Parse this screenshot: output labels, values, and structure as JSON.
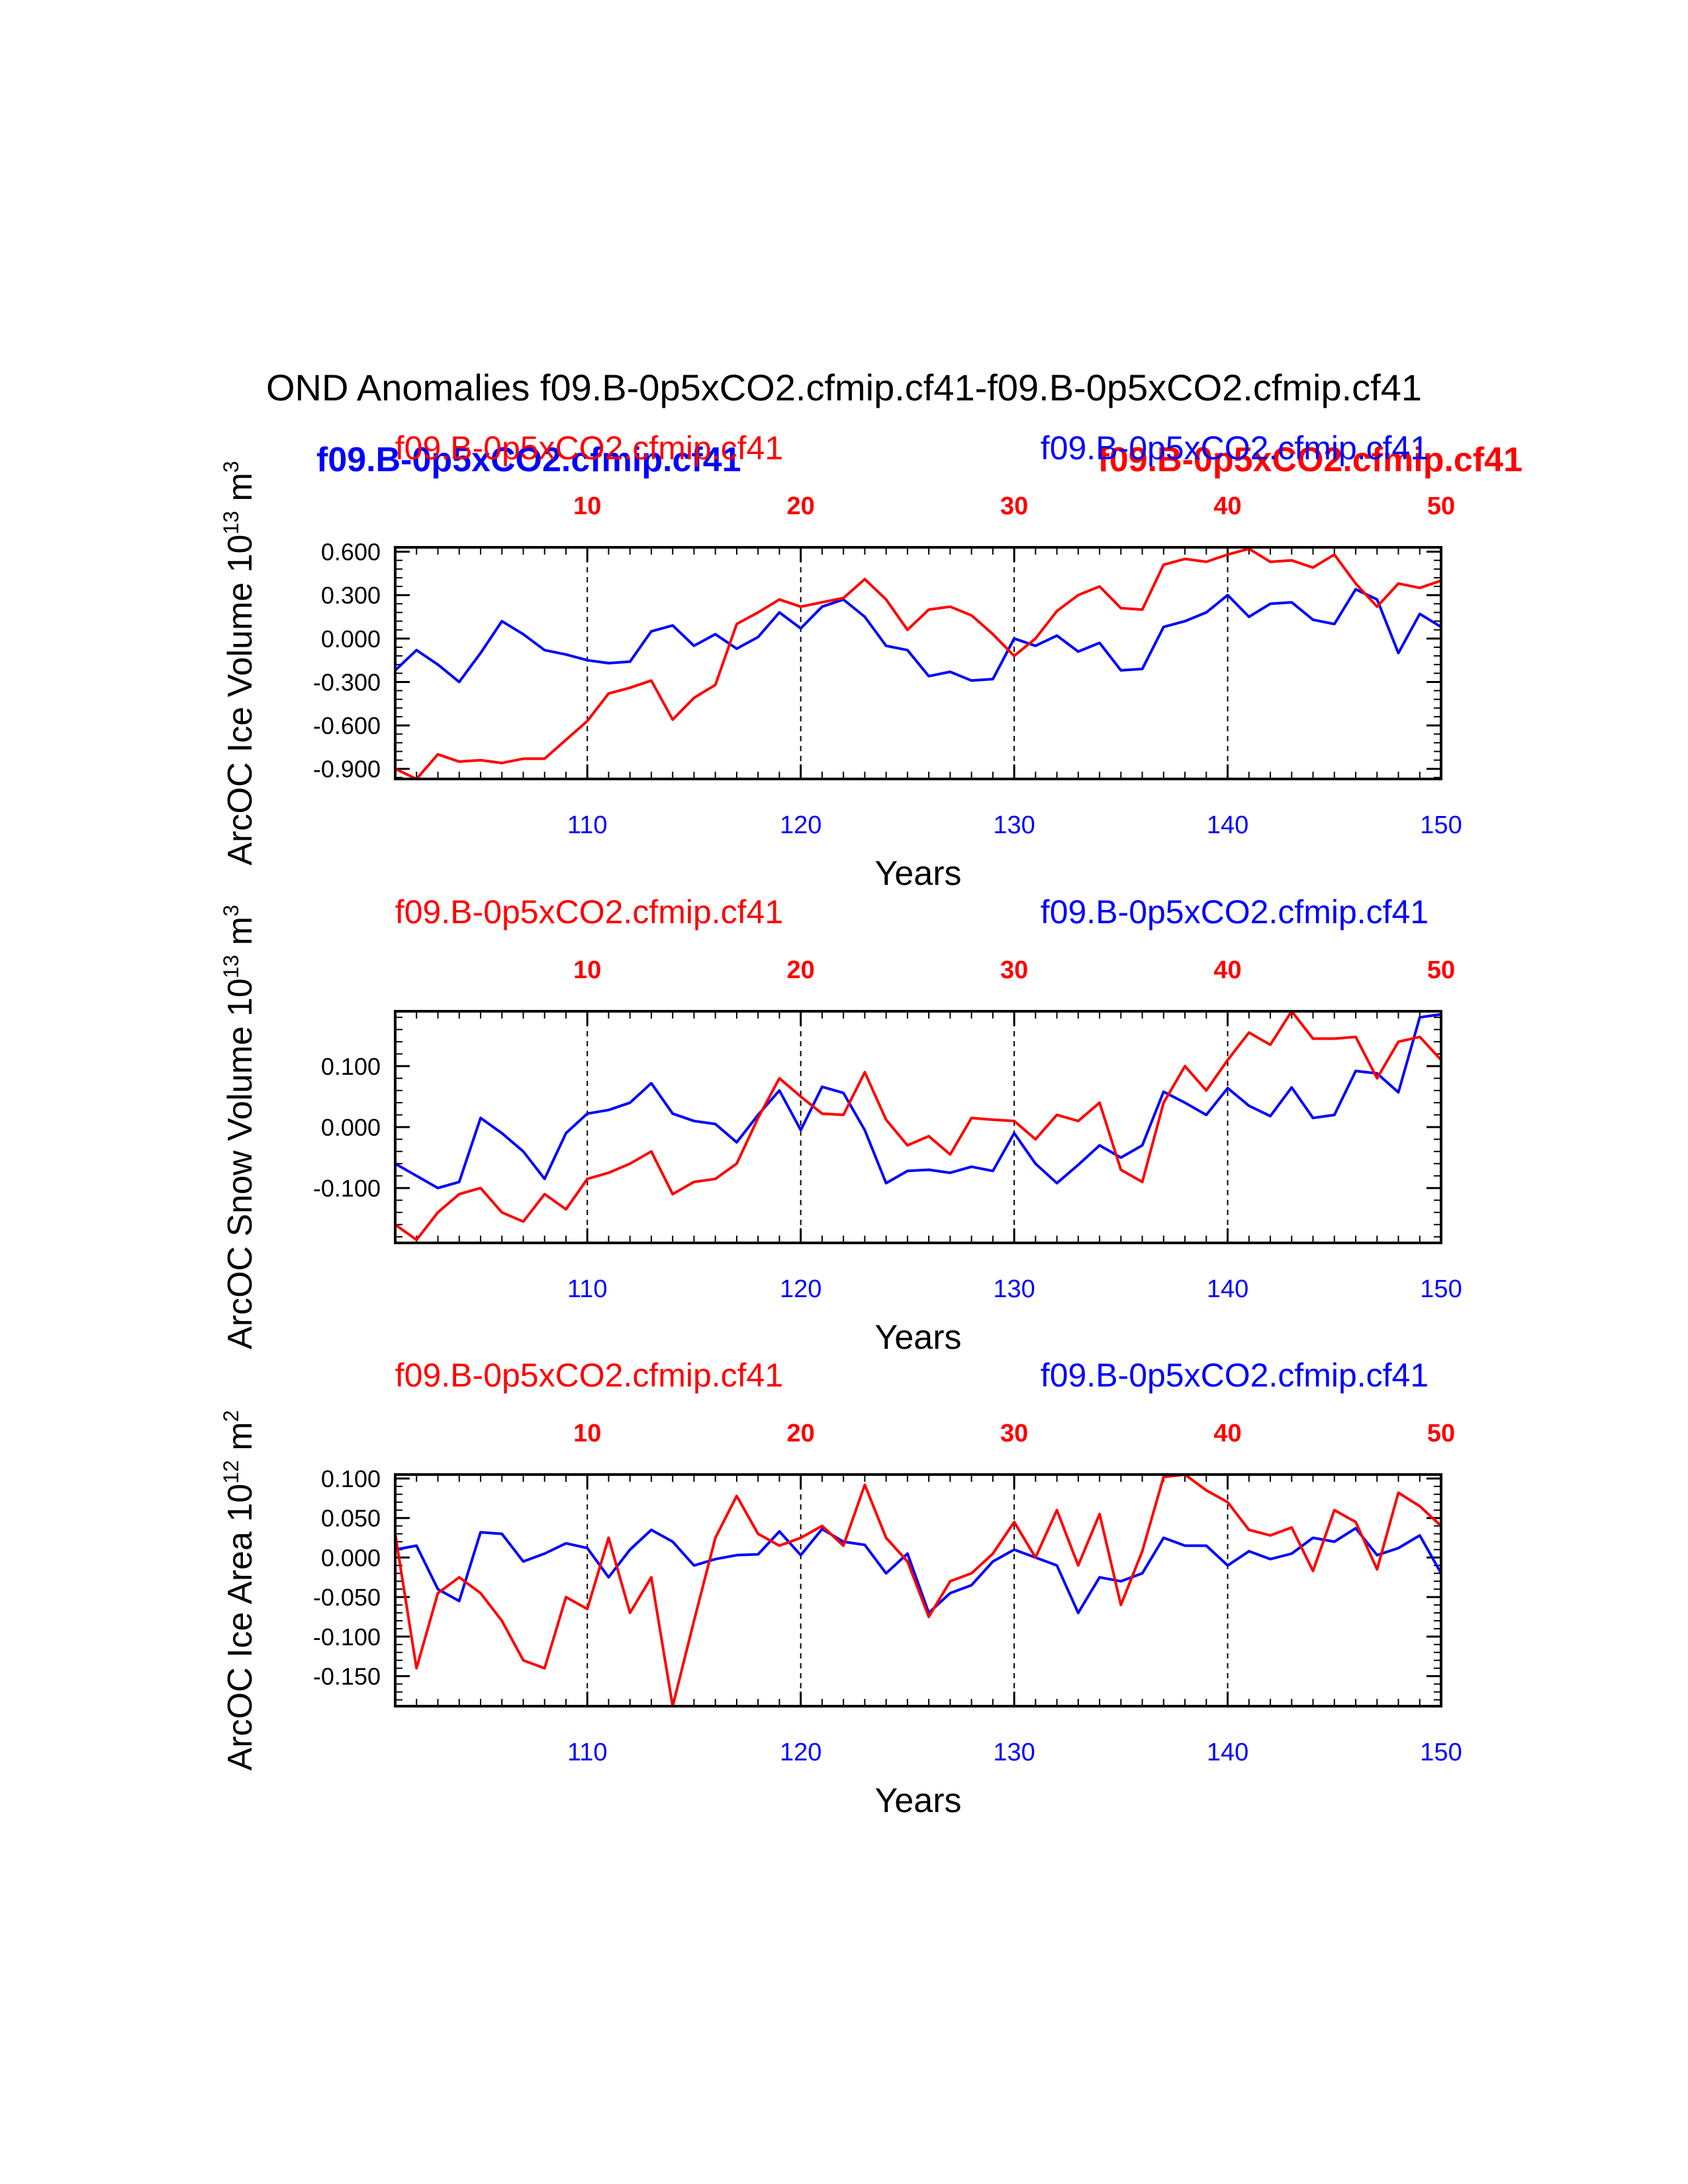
{
  "figure_title": "OND Anomalies f09.B-0p5xCO2.cfmip.cf41-f09.B-0p5xCO2.cfmip.cf41",
  "legend": {
    "red_name": "f09.B-0p5xCO2.cfmip.cf41",
    "blue_name": "f09.B-0p5xCO2.cfmip.cf41",
    "overlay_red": "f09.B-0p5xCO2.cfmip.cf41",
    "overlay_blue": "f09.B-0p5xCO2.cfmip.cf41"
  },
  "colors": {
    "red": "#ff0000",
    "blue": "#0000ff",
    "axis": "#000000"
  },
  "chart_data": [
    {
      "type": "line",
      "title": "",
      "ylabel": "ArcOC Ice Volume 10",
      "ylabel_exp": "13",
      "ylabel_unit": "m",
      "ylabel_unit_exp": "3",
      "xlabel": "Years",
      "xlim": [
        101,
        150
      ],
      "ylim": [
        -0.97,
        0.63
      ],
      "ytick_values": [
        -0.9,
        -0.6,
        -0.3,
        0.0,
        0.3,
        0.6
      ],
      "yticks": [
        "-0.900",
        "-0.600",
        "-0.300",
        "0.000",
        "0.300",
        "0.600"
      ],
      "bottom_ticks": [
        "110",
        "120",
        "130",
        "140",
        "150"
      ],
      "top_ticks": [
        "10",
        "20",
        "30",
        "40",
        "50"
      ],
      "x": [
        101,
        102,
        103,
        104,
        105,
        106,
        107,
        108,
        109,
        110,
        111,
        112,
        113,
        114,
        115,
        116,
        117,
        118,
        119,
        120,
        121,
        122,
        123,
        124,
        125,
        126,
        127,
        128,
        129,
        130,
        131,
        132,
        133,
        134,
        135,
        136,
        137,
        138,
        139,
        140,
        141,
        142,
        143,
        144,
        145,
        146,
        147,
        148,
        149,
        150
      ],
      "series": [
        {
          "name": "f09.B-0p5xCO2.cfmip.cf41",
          "color": "#0000ff",
          "values": [
            -0.22,
            -0.08,
            -0.18,
            -0.3,
            -0.1,
            0.12,
            0.03,
            -0.08,
            -0.11,
            -0.15,
            -0.17,
            -0.16,
            0.05,
            0.09,
            -0.05,
            0.03,
            -0.07,
            0.01,
            0.18,
            0.07,
            0.22,
            0.27,
            0.15,
            -0.05,
            -0.08,
            -0.26,
            -0.23,
            -0.29,
            -0.28,
            0.0,
            -0.05,
            0.02,
            -0.09,
            -0.03,
            -0.22,
            -0.21,
            0.08,
            0.12,
            0.18,
            0.3,
            0.15,
            0.24,
            0.25,
            0.13,
            0.1,
            0.34,
            0.27,
            -0.1,
            0.17,
            0.08
          ]
        },
        {
          "name": "f09.B-0p5xCO2.cfmip.cf41",
          "color": "#ff0000",
          "values": [
            -0.9,
            -0.97,
            -0.8,
            -0.85,
            -0.84,
            -0.86,
            -0.83,
            -0.83,
            -0.7,
            -0.57,
            -0.38,
            -0.34,
            -0.29,
            -0.56,
            -0.41,
            -0.32,
            0.1,
            0.18,
            0.27,
            0.22,
            0.25,
            0.28,
            0.41,
            0.27,
            0.06,
            0.2,
            0.22,
            0.16,
            0.03,
            -0.12,
            0.0,
            0.19,
            0.3,
            0.36,
            0.21,
            0.2,
            0.51,
            0.55,
            0.53,
            0.58,
            0.62,
            0.53,
            0.54,
            0.49,
            0.58,
            0.38,
            0.22,
            0.38,
            0.35,
            0.4
          ]
        }
      ]
    },
    {
      "type": "line",
      "title": "",
      "ylabel": "ArcOC Snow Volume 10",
      "ylabel_exp": "13",
      "ylabel_unit": "m",
      "ylabel_unit_exp": "3",
      "xlabel": "Years",
      "xlim": [
        101,
        150
      ],
      "ylim": [
        -0.19,
        0.19
      ],
      "ytick_values": [
        -0.1,
        0.0,
        0.1
      ],
      "yticks": [
        "-0.100",
        "0.000",
        "0.100"
      ],
      "bottom_ticks": [
        "110",
        "120",
        "130",
        "140",
        "150"
      ],
      "top_ticks": [
        "10",
        "20",
        "30",
        "40",
        "50"
      ],
      "x": [
        101,
        102,
        103,
        104,
        105,
        106,
        107,
        108,
        109,
        110,
        111,
        112,
        113,
        114,
        115,
        116,
        117,
        118,
        119,
        120,
        121,
        122,
        123,
        124,
        125,
        126,
        127,
        128,
        129,
        130,
        131,
        132,
        133,
        134,
        135,
        136,
        137,
        138,
        139,
        140,
        141,
        142,
        143,
        144,
        145,
        146,
        147,
        148,
        149,
        150
      ],
      "series": [
        {
          "name": "f09.B-0p5xCO2.cfmip.cf41",
          "color": "#0000ff",
          "values": [
            -0.06,
            -0.08,
            -0.1,
            -0.09,
            0.015,
            -0.01,
            -0.04,
            -0.085,
            -0.01,
            0.022,
            0.028,
            0.04,
            0.072,
            0.022,
            0.01,
            0.005,
            -0.025,
            0.02,
            0.06,
            -0.005,
            0.066,
            0.056,
            -0.005,
            -0.092,
            -0.072,
            -0.07,
            -0.075,
            -0.065,
            -0.072,
            -0.01,
            -0.06,
            -0.092,
            -0.062,
            -0.03,
            -0.05,
            -0.03,
            0.058,
            0.04,
            0.02,
            0.064,
            0.035,
            0.018,
            0.065,
            0.015,
            0.02,
            0.092,
            0.088,
            0.057,
            0.18,
            0.185
          ]
        },
        {
          "name": "f09.B-0p5xCO2.cfmip.cf41",
          "color": "#ff0000",
          "values": [
            -0.16,
            -0.185,
            -0.14,
            -0.11,
            -0.1,
            -0.14,
            -0.155,
            -0.11,
            -0.135,
            -0.085,
            -0.075,
            -0.06,
            -0.04,
            -0.11,
            -0.09,
            -0.085,
            -0.06,
            0.015,
            0.08,
            0.05,
            0.022,
            0.02,
            0.09,
            0.012,
            -0.03,
            -0.015,
            -0.045,
            0.015,
            0.012,
            0.01,
            -0.02,
            0.02,
            0.01,
            0.04,
            -0.07,
            -0.09,
            0.04,
            0.1,
            0.06,
            0.11,
            0.155,
            0.135,
            0.19,
            0.145,
            0.145,
            0.148,
            0.08,
            0.14,
            0.148,
            0.11
          ]
        }
      ]
    },
    {
      "type": "line",
      "title": "",
      "ylabel": "ArcOC Ice Area 10",
      "ylabel_exp": "12",
      "ylabel_unit": "m",
      "ylabel_unit_exp": "2",
      "xlabel": "Years",
      "xlim": [
        101,
        150
      ],
      "ylim": [
        -0.188,
        0.105
      ],
      "ytick_values": [
        -0.15,
        -0.1,
        -0.05,
        0.0,
        0.05,
        0.1
      ],
      "yticks": [
        "-0.150",
        "-0.100",
        "-0.050",
        "0.000",
        "0.050",
        "0.100"
      ],
      "bottom_ticks": [
        "110",
        "120",
        "130",
        "140",
        "150"
      ],
      "top_ticks": [
        "10",
        "20",
        "30",
        "40",
        "50"
      ],
      "x": [
        101,
        102,
        103,
        104,
        105,
        106,
        107,
        108,
        109,
        110,
        111,
        112,
        113,
        114,
        115,
        116,
        117,
        118,
        119,
        120,
        121,
        122,
        123,
        124,
        125,
        126,
        127,
        128,
        129,
        130,
        131,
        132,
        133,
        134,
        135,
        136,
        137,
        138,
        139,
        140,
        141,
        142,
        143,
        144,
        145,
        146,
        147,
        148,
        149,
        150
      ],
      "series": [
        {
          "name": "f09.B-0p5xCO2.cfmip.cf41",
          "color": "#0000ff",
          "values": [
            0.01,
            0.015,
            -0.04,
            -0.055,
            0.032,
            0.03,
            -0.005,
            0.005,
            0.018,
            0.012,
            -0.025,
            0.01,
            0.035,
            0.02,
            -0.01,
            -0.002,
            0.003,
            0.004,
            0.033,
            0.003,
            0.036,
            0.02,
            0.016,
            -0.02,
            0.005,
            -0.07,
            -0.045,
            -0.035,
            -0.005,
            0.01,
            0.0,
            -0.01,
            -0.07,
            -0.025,
            -0.03,
            -0.02,
            0.025,
            0.015,
            0.015,
            -0.01,
            0.008,
            -0.002,
            0.005,
            0.025,
            0.02,
            0.037,
            0.003,
            0.012,
            0.028,
            -0.02
          ]
        },
        {
          "name": "f09.B-0p5xCO2.cfmip.cf41",
          "color": "#ff0000",
          "values": [
            0.03,
            -0.14,
            -0.045,
            -0.025,
            -0.045,
            -0.08,
            -0.13,
            -0.14,
            -0.05,
            -0.065,
            0.025,
            -0.07,
            -0.025,
            -0.188,
            -0.08,
            0.025,
            0.078,
            0.03,
            0.015,
            0.025,
            0.04,
            0.015,
            0.092,
            0.025,
            -0.005,
            -0.075,
            -0.03,
            -0.02,
            0.005,
            0.045,
            0.0,
            0.06,
            -0.01,
            0.055,
            -0.06,
            0.008,
            0.102,
            0.105,
            0.085,
            0.07,
            0.035,
            0.028,
            0.038,
            -0.017,
            0.06,
            0.045,
            -0.015,
            0.082,
            0.065,
            0.04
          ]
        }
      ]
    }
  ]
}
